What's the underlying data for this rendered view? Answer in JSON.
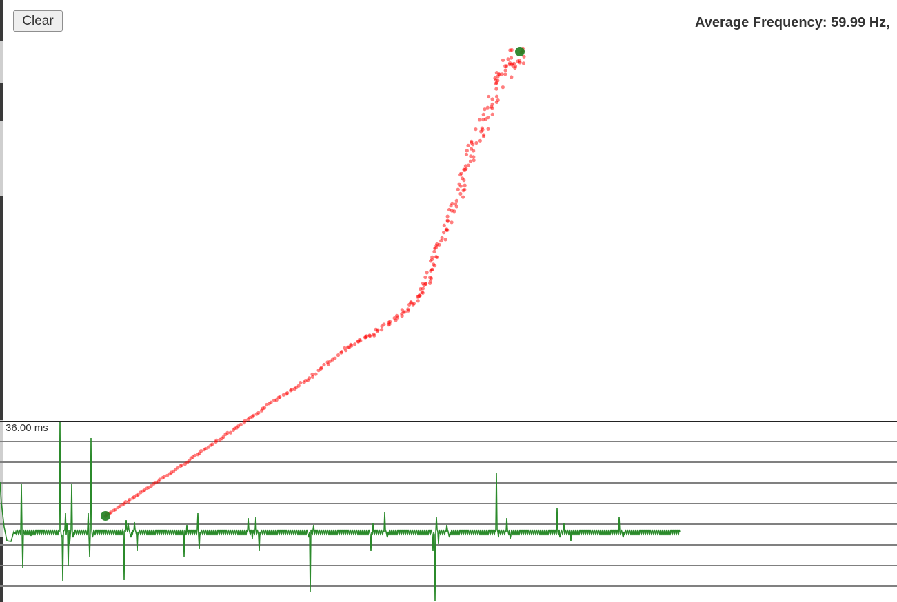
{
  "toolbar": {
    "clear_label": "Clear"
  },
  "status": {
    "average_frequency_text": "Average Frequency: 59.99 Hz,"
  },
  "timing_graph": {
    "scale_label": "36.00 ms",
    "line_color": "#2b8a2b",
    "grid_color": "#808080"
  },
  "pointer_trace": {
    "point_color": "#ff0000",
    "endpoint_color": "#1e7e1e"
  },
  "colors": {
    "background": "#ffffff",
    "text": "#333333"
  }
}
